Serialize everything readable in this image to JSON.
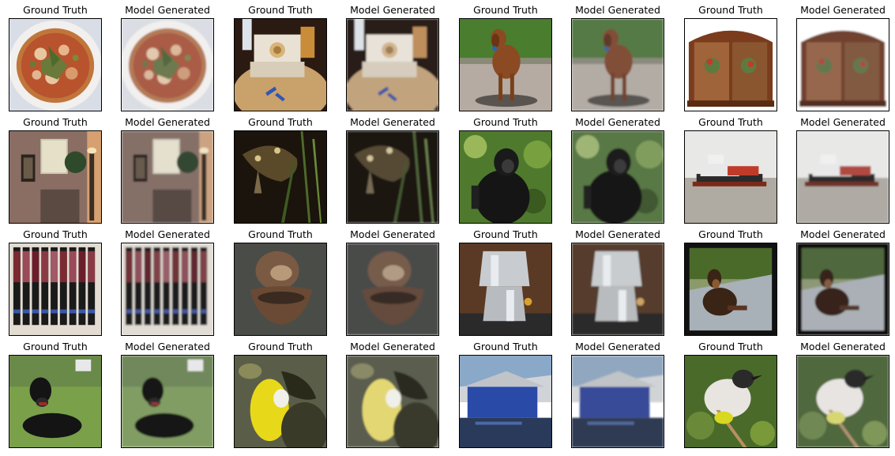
{
  "figure": {
    "titles": {
      "gt": "Ground Truth",
      "gen": "Model Generated"
    },
    "rows": [
      [
        {
          "title": "Ground Truth",
          "subject": "pizza"
        },
        {
          "title": "Model Generated",
          "subject": "pizza"
        },
        {
          "title": "Ground Truth",
          "subject": "sewing-machine"
        },
        {
          "title": "Model Generated",
          "subject": "sewing-machine"
        },
        {
          "title": "Ground Truth",
          "subject": "dog-standing"
        },
        {
          "title": "Model Generated",
          "subject": "dog-standing"
        },
        {
          "title": "Ground Truth",
          "subject": "wooden-cabinet"
        },
        {
          "title": "Model Generated",
          "subject": "wooden-cabinet"
        }
      ],
      [
        {
          "title": "Ground Truth",
          "subject": "living-room"
        },
        {
          "title": "Model Generated",
          "subject": "living-room"
        },
        {
          "title": "Ground Truth",
          "subject": "frog-night"
        },
        {
          "title": "Model Generated",
          "subject": "frog-night"
        },
        {
          "title": "Ground Truth",
          "subject": "monkey"
        },
        {
          "title": "Model Generated",
          "subject": "monkey"
        },
        {
          "title": "Ground Truth",
          "subject": "boat"
        },
        {
          "title": "Model Generated",
          "subject": "boat"
        }
      ],
      [
        {
          "title": "Ground Truth",
          "subject": "lipsticks"
        },
        {
          "title": "Model Generated",
          "subject": "lipsticks"
        },
        {
          "title": "Ground Truth",
          "subject": "metal-object"
        },
        {
          "title": "Model Generated",
          "subject": "metal-object"
        },
        {
          "title": "Ground Truth",
          "subject": "coffee-pot"
        },
        {
          "title": "Model Generated",
          "subject": "coffee-pot"
        },
        {
          "title": "Ground Truth",
          "subject": "dog-sitting"
        },
        {
          "title": "Model Generated",
          "subject": "dog-sitting"
        }
      ],
      [
        {
          "title": "Ground Truth",
          "subject": "black-puppy"
        },
        {
          "title": "Model Generated",
          "subject": "black-puppy"
        },
        {
          "title": "Ground Truth",
          "subject": "toucan"
        },
        {
          "title": "Model Generated",
          "subject": "toucan"
        },
        {
          "title": "Ground Truth",
          "subject": "blue-shed"
        },
        {
          "title": "Model Generated",
          "subject": "blue-shed"
        },
        {
          "title": "Ground Truth",
          "subject": "bird-branch"
        },
        {
          "title": "Model Generated",
          "subject": "bird-branch"
        }
      ]
    ]
  }
}
